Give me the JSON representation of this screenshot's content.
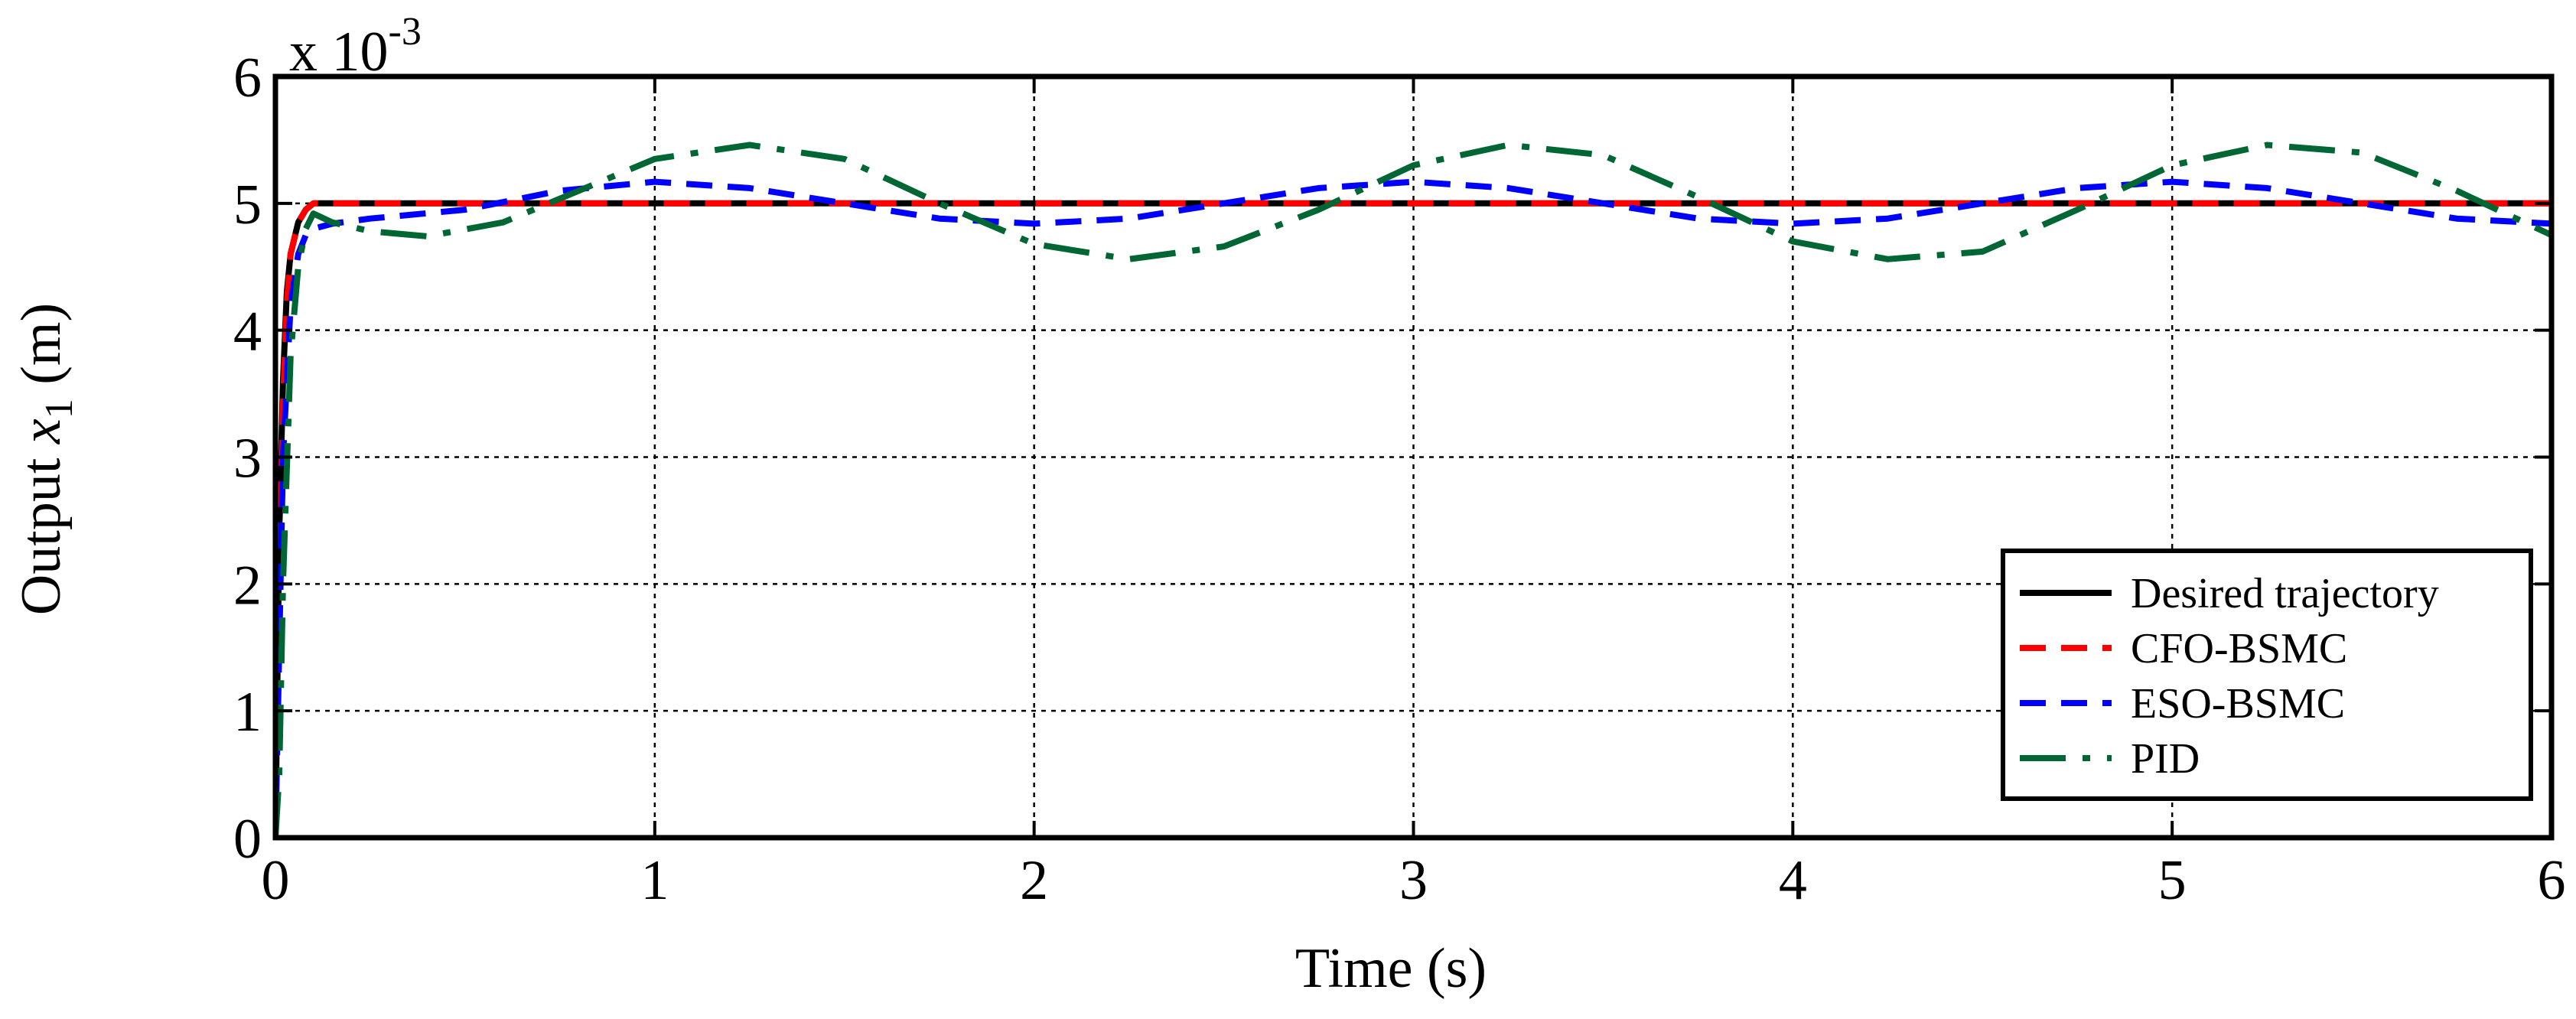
{
  "chart_data": {
    "type": "line",
    "xlabel": "Time (s)",
    "ylabel": {
      "prefix": "Output ",
      "var": "x",
      "sub": "1",
      "suffix": " (m)"
    },
    "exponent": {
      "base": "x 10",
      "power": "-3"
    },
    "xlim": [
      0,
      6
    ],
    "ylim": [
      0,
      6
    ],
    "y_scale_note": "y values in units of 1e-3 m",
    "xticks": [
      0,
      1,
      2,
      3,
      4,
      5,
      6
    ],
    "yticks": [
      0,
      1,
      2,
      3,
      4,
      5,
      6
    ],
    "xtick_labels": [
      "0",
      "1",
      "2",
      "3",
      "4",
      "5",
      "6"
    ],
    "ytick_labels": [
      "0",
      "1",
      "2",
      "3",
      "4",
      "5",
      "6"
    ],
    "grid": true,
    "legend_position": "bottom-right",
    "series": [
      {
        "name": "Desired trajectory",
        "color": "#000000",
        "style": "solid",
        "x": [
          0,
          0.005,
          0.01,
          0.02,
          0.03,
          0.04,
          0.06,
          0.08,
          0.1,
          0.15,
          6
        ],
        "y": [
          0,
          1.2,
          2.4,
          3.6,
          4.3,
          4.6,
          4.85,
          4.95,
          5.0,
          5.0,
          5.0
        ]
      },
      {
        "name": "CFO-BSMC",
        "color": "#ff0000",
        "style": "dashed",
        "x": [
          0,
          0.005,
          0.01,
          0.02,
          0.03,
          0.04,
          0.06,
          0.08,
          0.1,
          0.15,
          6
        ],
        "y": [
          0,
          1.0,
          2.1,
          3.4,
          4.2,
          4.6,
          4.85,
          4.95,
          5.0,
          5.0,
          5.0
        ]
      },
      {
        "name": "ESO-BSMC",
        "color": "#0000ff",
        "style": "dashed",
        "x": [
          0,
          0.01,
          0.02,
          0.04,
          0.06,
          0.08,
          0.1,
          0.15,
          0.25,
          0.5,
          0.75,
          1.0,
          1.25,
          1.5,
          1.75,
          2.0,
          2.25,
          2.5,
          2.75,
          3.0,
          3.25,
          3.5,
          3.75,
          4.0,
          4.25,
          4.5,
          4.75,
          5.0,
          5.25,
          5.5,
          5.75,
          6.0
        ],
        "y": [
          0,
          1.5,
          3.0,
          4.2,
          4.6,
          4.75,
          4.8,
          4.84,
          4.88,
          4.95,
          5.1,
          5.17,
          5.12,
          5.0,
          4.88,
          4.84,
          4.88,
          5.0,
          5.12,
          5.17,
          5.12,
          5.0,
          4.88,
          4.84,
          4.88,
          5.0,
          5.12,
          5.17,
          5.12,
          5.0,
          4.88,
          4.84
        ]
      },
      {
        "name": "PID",
        "color": "#006633",
        "style": "dashdot",
        "x": [
          0,
          0.01,
          0.02,
          0.04,
          0.06,
          0.08,
          0.1,
          0.15,
          0.25,
          0.4,
          0.6,
          0.8,
          1.0,
          1.25,
          1.5,
          1.75,
          2.0,
          2.25,
          2.5,
          2.75,
          3.0,
          3.25,
          3.5,
          3.75,
          4.0,
          4.25,
          4.5,
          4.75,
          5.0,
          5.25,
          5.5,
          5.75,
          6.0
        ],
        "y": [
          0,
          0.5,
          2.0,
          3.8,
          4.5,
          4.8,
          4.92,
          4.85,
          4.78,
          4.74,
          4.85,
          5.1,
          5.35,
          5.46,
          5.35,
          5.0,
          4.68,
          4.56,
          4.66,
          4.95,
          5.3,
          5.46,
          5.38,
          5.05,
          4.7,
          4.56,
          4.62,
          4.95,
          5.3,
          5.46,
          5.4,
          5.1,
          4.75
        ]
      }
    ]
  }
}
